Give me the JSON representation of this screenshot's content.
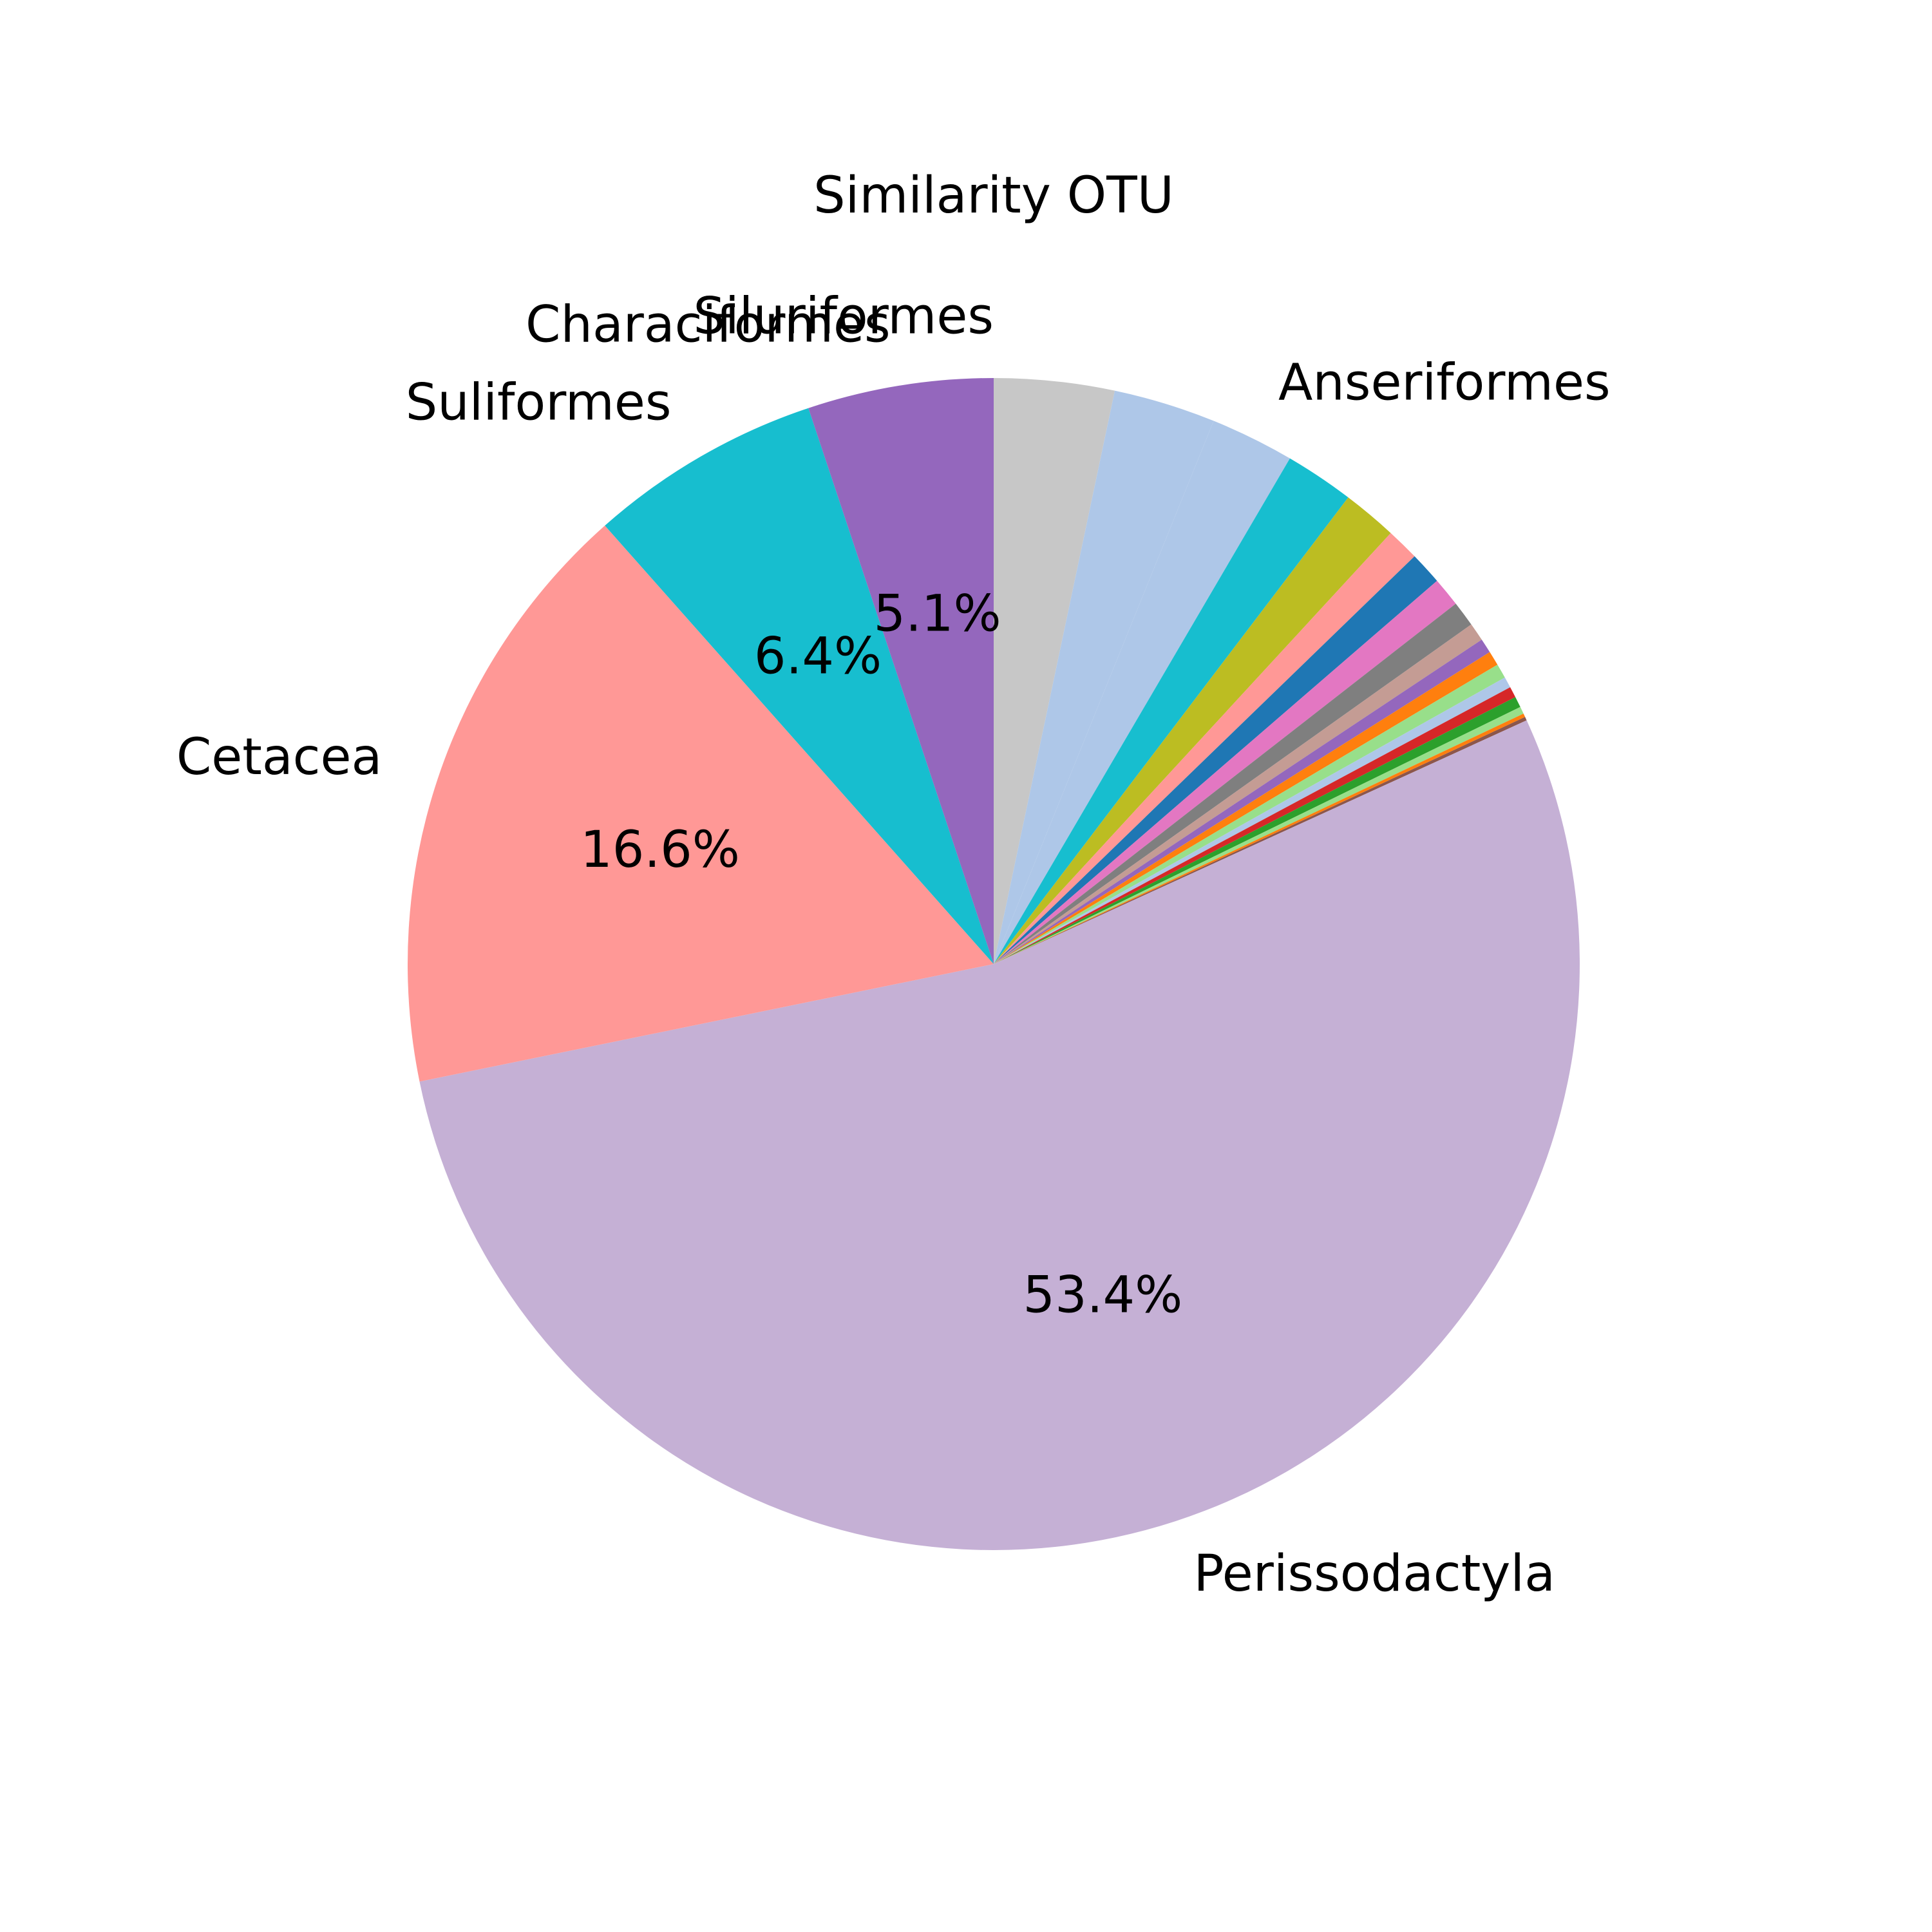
{
  "chart_data": {
    "type": "pie",
    "title": "Similarity OTU",
    "start_angle_deg": 90,
    "direction": "clockwise",
    "slices": [
      {
        "label": "",
        "value": 3.3,
        "color": "#c7c7c7",
        "pct_label": ""
      },
      {
        "label": "",
        "value": 2.8,
        "color": "#aec7e8",
        "pct_label": ""
      },
      {
        "label": "Anseriformes",
        "value": 2.3,
        "color": "#aec7e8",
        "pct_label": ""
      },
      {
        "label": "",
        "value": 1.9,
        "color": "#17becf",
        "pct_label": ""
      },
      {
        "label": "",
        "value": 1.5,
        "color": "#bcbd22",
        "pct_label": ""
      },
      {
        "label": "",
        "value": 0.9,
        "color": "#ff9896",
        "pct_label": ""
      },
      {
        "label": "",
        "value": 0.9,
        "color": "#1f77b4",
        "pct_label": ""
      },
      {
        "label": "",
        "value": 0.8,
        "color": "#e377c2",
        "pct_label": ""
      },
      {
        "label": "",
        "value": 0.7,
        "color": "#7f7f7f",
        "pct_label": ""
      },
      {
        "label": "",
        "value": 0.5,
        "color": "#c49c94",
        "pct_label": ""
      },
      {
        "label": "",
        "value": 0.4,
        "color": "#9467bd",
        "pct_label": ""
      },
      {
        "label": "",
        "value": 0.4,
        "color": "#ff7f0e",
        "pct_label": ""
      },
      {
        "label": "",
        "value": 0.4,
        "color": "#98df8a",
        "pct_label": ""
      },
      {
        "label": "",
        "value": 0.3,
        "color": "#aec7e8",
        "pct_label": ""
      },
      {
        "label": "",
        "value": 0.3,
        "color": "#d62728",
        "pct_label": ""
      },
      {
        "label": "",
        "value": 0.3,
        "color": "#2ca02c",
        "pct_label": ""
      },
      {
        "label": "",
        "value": 0.2,
        "color": "#98df8a",
        "pct_label": ""
      },
      {
        "label": "",
        "value": 0.1,
        "color": "#ff7f0e",
        "pct_label": ""
      },
      {
        "label": "",
        "value": 0.1,
        "color": "#8c564b",
        "pct_label": ""
      },
      {
        "label": "Perissodactyla",
        "value": 53.4,
        "color": "#c5b0d5",
        "pct_label": "53.4%"
      },
      {
        "label": "Cetacea",
        "value": 16.6,
        "color": "#ff9896",
        "pct_label": "16.6%"
      },
      {
        "label": "Suliformes",
        "value": 6.4,
        "color": "#17becf",
        "pct_label": "6.4%"
      },
      {
        "label": "Characiformes",
        "value": 5.1,
        "color": "#9467bd",
        "pct_label": "5.1%"
      },
      {
        "label": "Siluriformes",
        "value": 0,
        "color": "#c7c7c7",
        "pct_label": ""
      }
    ]
  }
}
